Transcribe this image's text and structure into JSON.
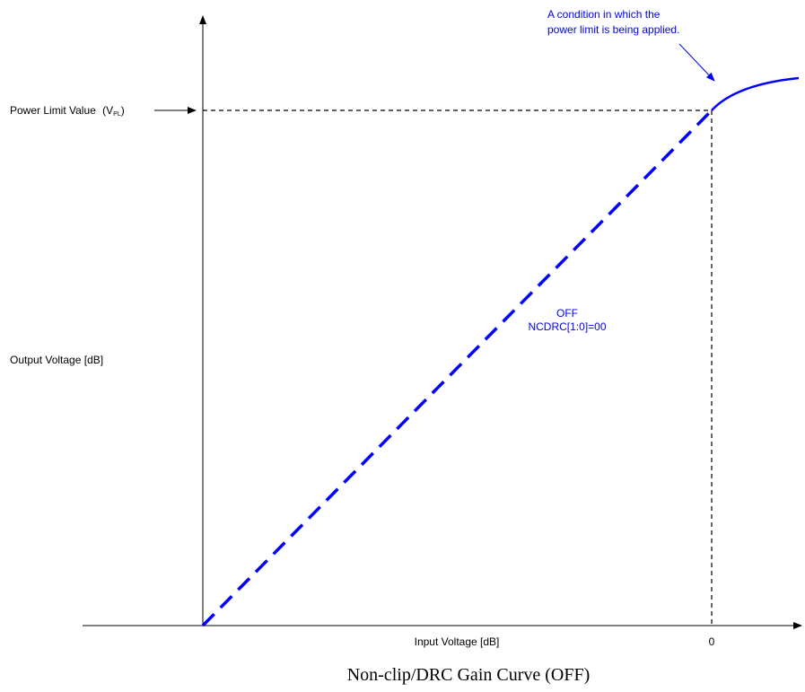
{
  "diagram": {
    "caption": "Non-clip/DRC Gain Curve (OFF)",
    "y_axis_label": "Output Voltage [dB]",
    "x_axis_label": "Input Voltage [dB]",
    "x_zero_tick": "0",
    "power_limit": {
      "label": "Power Limit Value",
      "symbol_open": "(V",
      "symbol_sub": "PL",
      "symbol_close": ")"
    },
    "mode_label": {
      "line1": "OFF",
      "line2": "NCDRC[1:0]=00"
    },
    "annotation": {
      "line1": "A condition in which the",
      "line2": "power limit is being applied."
    },
    "colors": {
      "curve": "#0000ff",
      "axis": "#000000",
      "text_blue": "#0000ff"
    }
  }
}
